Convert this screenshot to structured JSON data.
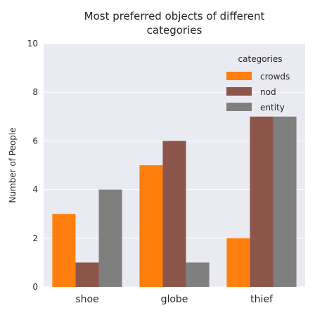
{
  "chart_data": {
    "type": "bar",
    "title_line1": "Most preferred objects of different",
    "title_line2": "categories",
    "xlabel": "",
    "ylabel": "Number of People",
    "ylim": [
      0,
      10
    ],
    "yticks": [
      "0",
      "2",
      "4",
      "6",
      "8",
      "10"
    ],
    "categories": [
      "shoe",
      "globe",
      "thief"
    ],
    "legend_title": "categories",
    "legend_position": "top-right",
    "grid": true,
    "series": [
      {
        "name": "crowds",
        "color": "#ff7f0e",
        "values": [
          3,
          5,
          2
        ]
      },
      {
        "name": "nod",
        "color": "#8c564b",
        "values": [
          1,
          6,
          7
        ]
      },
      {
        "name": "entity",
        "color": "#7f7f7f",
        "values": [
          4,
          1,
          7
        ]
      }
    ]
  }
}
